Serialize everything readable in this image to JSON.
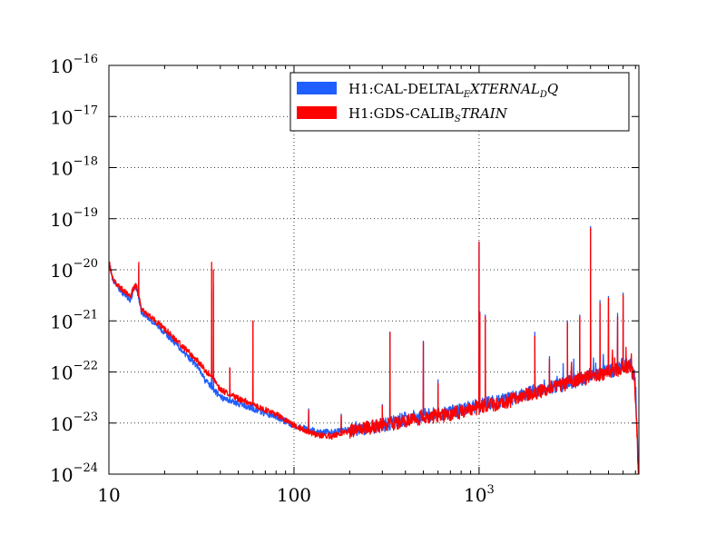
{
  "chart_data": {
    "type": "line",
    "title": "",
    "xlabel": "",
    "ylabel": "",
    "x_scale": "log",
    "y_scale": "log",
    "xlim": [
      10,
      7300
    ],
    "ylim": [
      1e-24,
      1e-16
    ],
    "grid": true,
    "legend_position": "top-right",
    "x_ticks": [
      {
        "value": 10,
        "base": "10",
        "exp": ""
      },
      {
        "value": 100,
        "base": "100",
        "exp": ""
      },
      {
        "value": 1000,
        "base": "10",
        "exp": "3"
      }
    ],
    "y_ticks": [
      {
        "value": 1e-24,
        "base": "10",
        "exp": "−24"
      },
      {
        "value": 1e-23,
        "base": "10",
        "exp": "−23"
      },
      {
        "value": 1e-22,
        "base": "10",
        "exp": "−22"
      },
      {
        "value": 1e-21,
        "base": "10",
        "exp": "−21"
      },
      {
        "value": 1e-20,
        "base": "10",
        "exp": "−20"
      },
      {
        "value": 1e-19,
        "base": "10",
        "exp": "−19"
      },
      {
        "value": 1e-18,
        "base": "10",
        "exp": "−18"
      },
      {
        "value": 1e-17,
        "base": "10",
        "exp": "−17"
      },
      {
        "value": 1e-16,
        "base": "10",
        "exp": "−16"
      }
    ],
    "series": [
      {
        "name": "H1:CAL-DELTAL_EXTERNAL_DQ",
        "legend_main": "H1:CAL-DELTAL",
        "legend_sub": "E",
        "legend_italic": "XTERNAL",
        "legend_sub2": "D",
        "legend_italic2": "Q",
        "color": "#1f5fff",
        "baseline": [
          [
            10,
            1.5e-20
          ],
          [
            10.5,
            6e-21
          ],
          [
            11.5,
            4e-21
          ],
          [
            13,
            2.6e-21
          ],
          [
            14,
            5e-21
          ],
          [
            15,
            1.5e-21
          ],
          [
            17,
            1e-21
          ],
          [
            20,
            6e-22
          ],
          [
            25,
            2.6e-22
          ],
          [
            30,
            1.3e-22
          ],
          [
            33,
            7e-23
          ],
          [
            36,
            5e-23
          ],
          [
            40,
            3.2e-23
          ],
          [
            50,
            2.4e-23
          ],
          [
            60,
            1.9e-23
          ],
          [
            70,
            1.55e-23
          ],
          [
            80,
            1.3e-23
          ],
          [
            100,
            9e-24
          ],
          [
            130,
            7e-24
          ],
          [
            160,
            6.5e-24
          ],
          [
            200,
            7.5e-24
          ],
          [
            300,
            9e-24
          ],
          [
            400,
            1.2e-23
          ],
          [
            500,
            1.4e-23
          ],
          [
            700,
            1.6e-23
          ],
          [
            1000,
            2.2e-23
          ],
          [
            1500,
            3e-23
          ],
          [
            2000,
            4.2e-23
          ],
          [
            3000,
            6e-23
          ],
          [
            4000,
            8e-23
          ],
          [
            5000,
            1e-22
          ],
          [
            6000,
            1.3e-22
          ],
          [
            6500,
            1.4e-22
          ],
          [
            6900,
            8e-23
          ],
          [
            7100,
            1.2e-23
          ],
          [
            7250,
            1.2e-24
          ]
        ],
        "peaks": [
          [
            14.5,
            1.2e-20
          ],
          [
            35.9,
            4e-21
          ],
          [
            36.7,
            5e-21
          ],
          [
            45,
            1.2e-22
          ],
          [
            60,
            1e-21
          ],
          [
            120,
            1.9e-23
          ],
          [
            180,
            1.5e-23
          ],
          [
            300,
            2.3e-23
          ],
          [
            330,
            6e-22
          ],
          [
            500,
            4e-22
          ],
          [
            600,
            7e-23
          ],
          [
            1000,
            3.5e-20
          ],
          [
            1010,
            1.5e-21
          ],
          [
            1080,
            1.3e-21
          ],
          [
            2000,
            6e-22
          ],
          [
            2400,
            2e-22
          ],
          [
            3000,
            1e-21
          ],
          [
            3500,
            1.3e-21
          ],
          [
            4000,
            7e-20
          ],
          [
            4500,
            2.5e-21
          ],
          [
            5000,
            3e-21
          ],
          [
            5600,
            1.4e-21
          ],
          [
            6000,
            3.5e-21
          ]
        ]
      },
      {
        "name": "H1:GDS-CALIB_STRAIN",
        "legend_main": "H1:GDS-CALIB",
        "legend_sub": "S",
        "legend_italic": "TRAIN",
        "legend_sub2": "",
        "legend_italic2": "",
        "color": "#ff0000",
        "baseline": [
          [
            10,
            1.5e-20
          ],
          [
            10.5,
            6.5e-21
          ],
          [
            11.5,
            4.5e-21
          ],
          [
            13,
            3e-21
          ],
          [
            14,
            5.5e-21
          ],
          [
            15,
            1.7e-21
          ],
          [
            17,
            1.15e-21
          ],
          [
            20,
            7e-22
          ],
          [
            25,
            3.2e-22
          ],
          [
            30,
            1.7e-22
          ],
          [
            33,
            1.1e-22
          ],
          [
            36,
            8e-23
          ],
          [
            40,
            4.5e-23
          ],
          [
            50,
            3e-23
          ],
          [
            60,
            2.4e-23
          ],
          [
            70,
            1.8e-23
          ],
          [
            80,
            1.5e-23
          ],
          [
            100,
            9e-24
          ],
          [
            130,
            6e-24
          ],
          [
            160,
            5.5e-24
          ],
          [
            200,
            7e-24
          ],
          [
            300,
            9e-24
          ],
          [
            400,
            1.1e-23
          ],
          [
            500,
            1.3e-23
          ],
          [
            700,
            1.5e-23
          ],
          [
            1000,
            2e-23
          ],
          [
            1500,
            2.8e-23
          ],
          [
            2000,
            4e-23
          ],
          [
            3000,
            6e-23
          ],
          [
            4000,
            8e-23
          ],
          [
            5000,
            1e-22
          ],
          [
            6000,
            1.2e-22
          ],
          [
            6500,
            1.3e-22
          ],
          [
            6900,
            8e-23
          ],
          [
            7100,
            1e-23
          ],
          [
            7250,
            1e-24
          ]
        ],
        "peaks": [
          [
            14.5,
            1.4e-20
          ],
          [
            35.9,
            1.4e-20
          ],
          [
            36.7,
            1e-20
          ],
          [
            45,
            1.2e-22
          ],
          [
            60,
            1e-21
          ],
          [
            120,
            1.8e-23
          ],
          [
            180,
            1.4e-23
          ],
          [
            300,
            2.2e-23
          ],
          [
            330,
            6e-22
          ],
          [
            500,
            3.8e-22
          ],
          [
            600,
            6e-23
          ],
          [
            1000,
            3.5e-20
          ],
          [
            1010,
            1.4e-21
          ],
          [
            1080,
            1.2e-21
          ],
          [
            2000,
            5e-22
          ],
          [
            2400,
            1.8e-22
          ],
          [
            3000,
            9e-22
          ],
          [
            3500,
            1.2e-21
          ],
          [
            4000,
            6.5e-20
          ],
          [
            4500,
            2.2e-21
          ],
          [
            5000,
            2.8e-21
          ],
          [
            5600,
            1.2e-21
          ],
          [
            6000,
            3.2e-21
          ]
        ]
      }
    ]
  }
}
